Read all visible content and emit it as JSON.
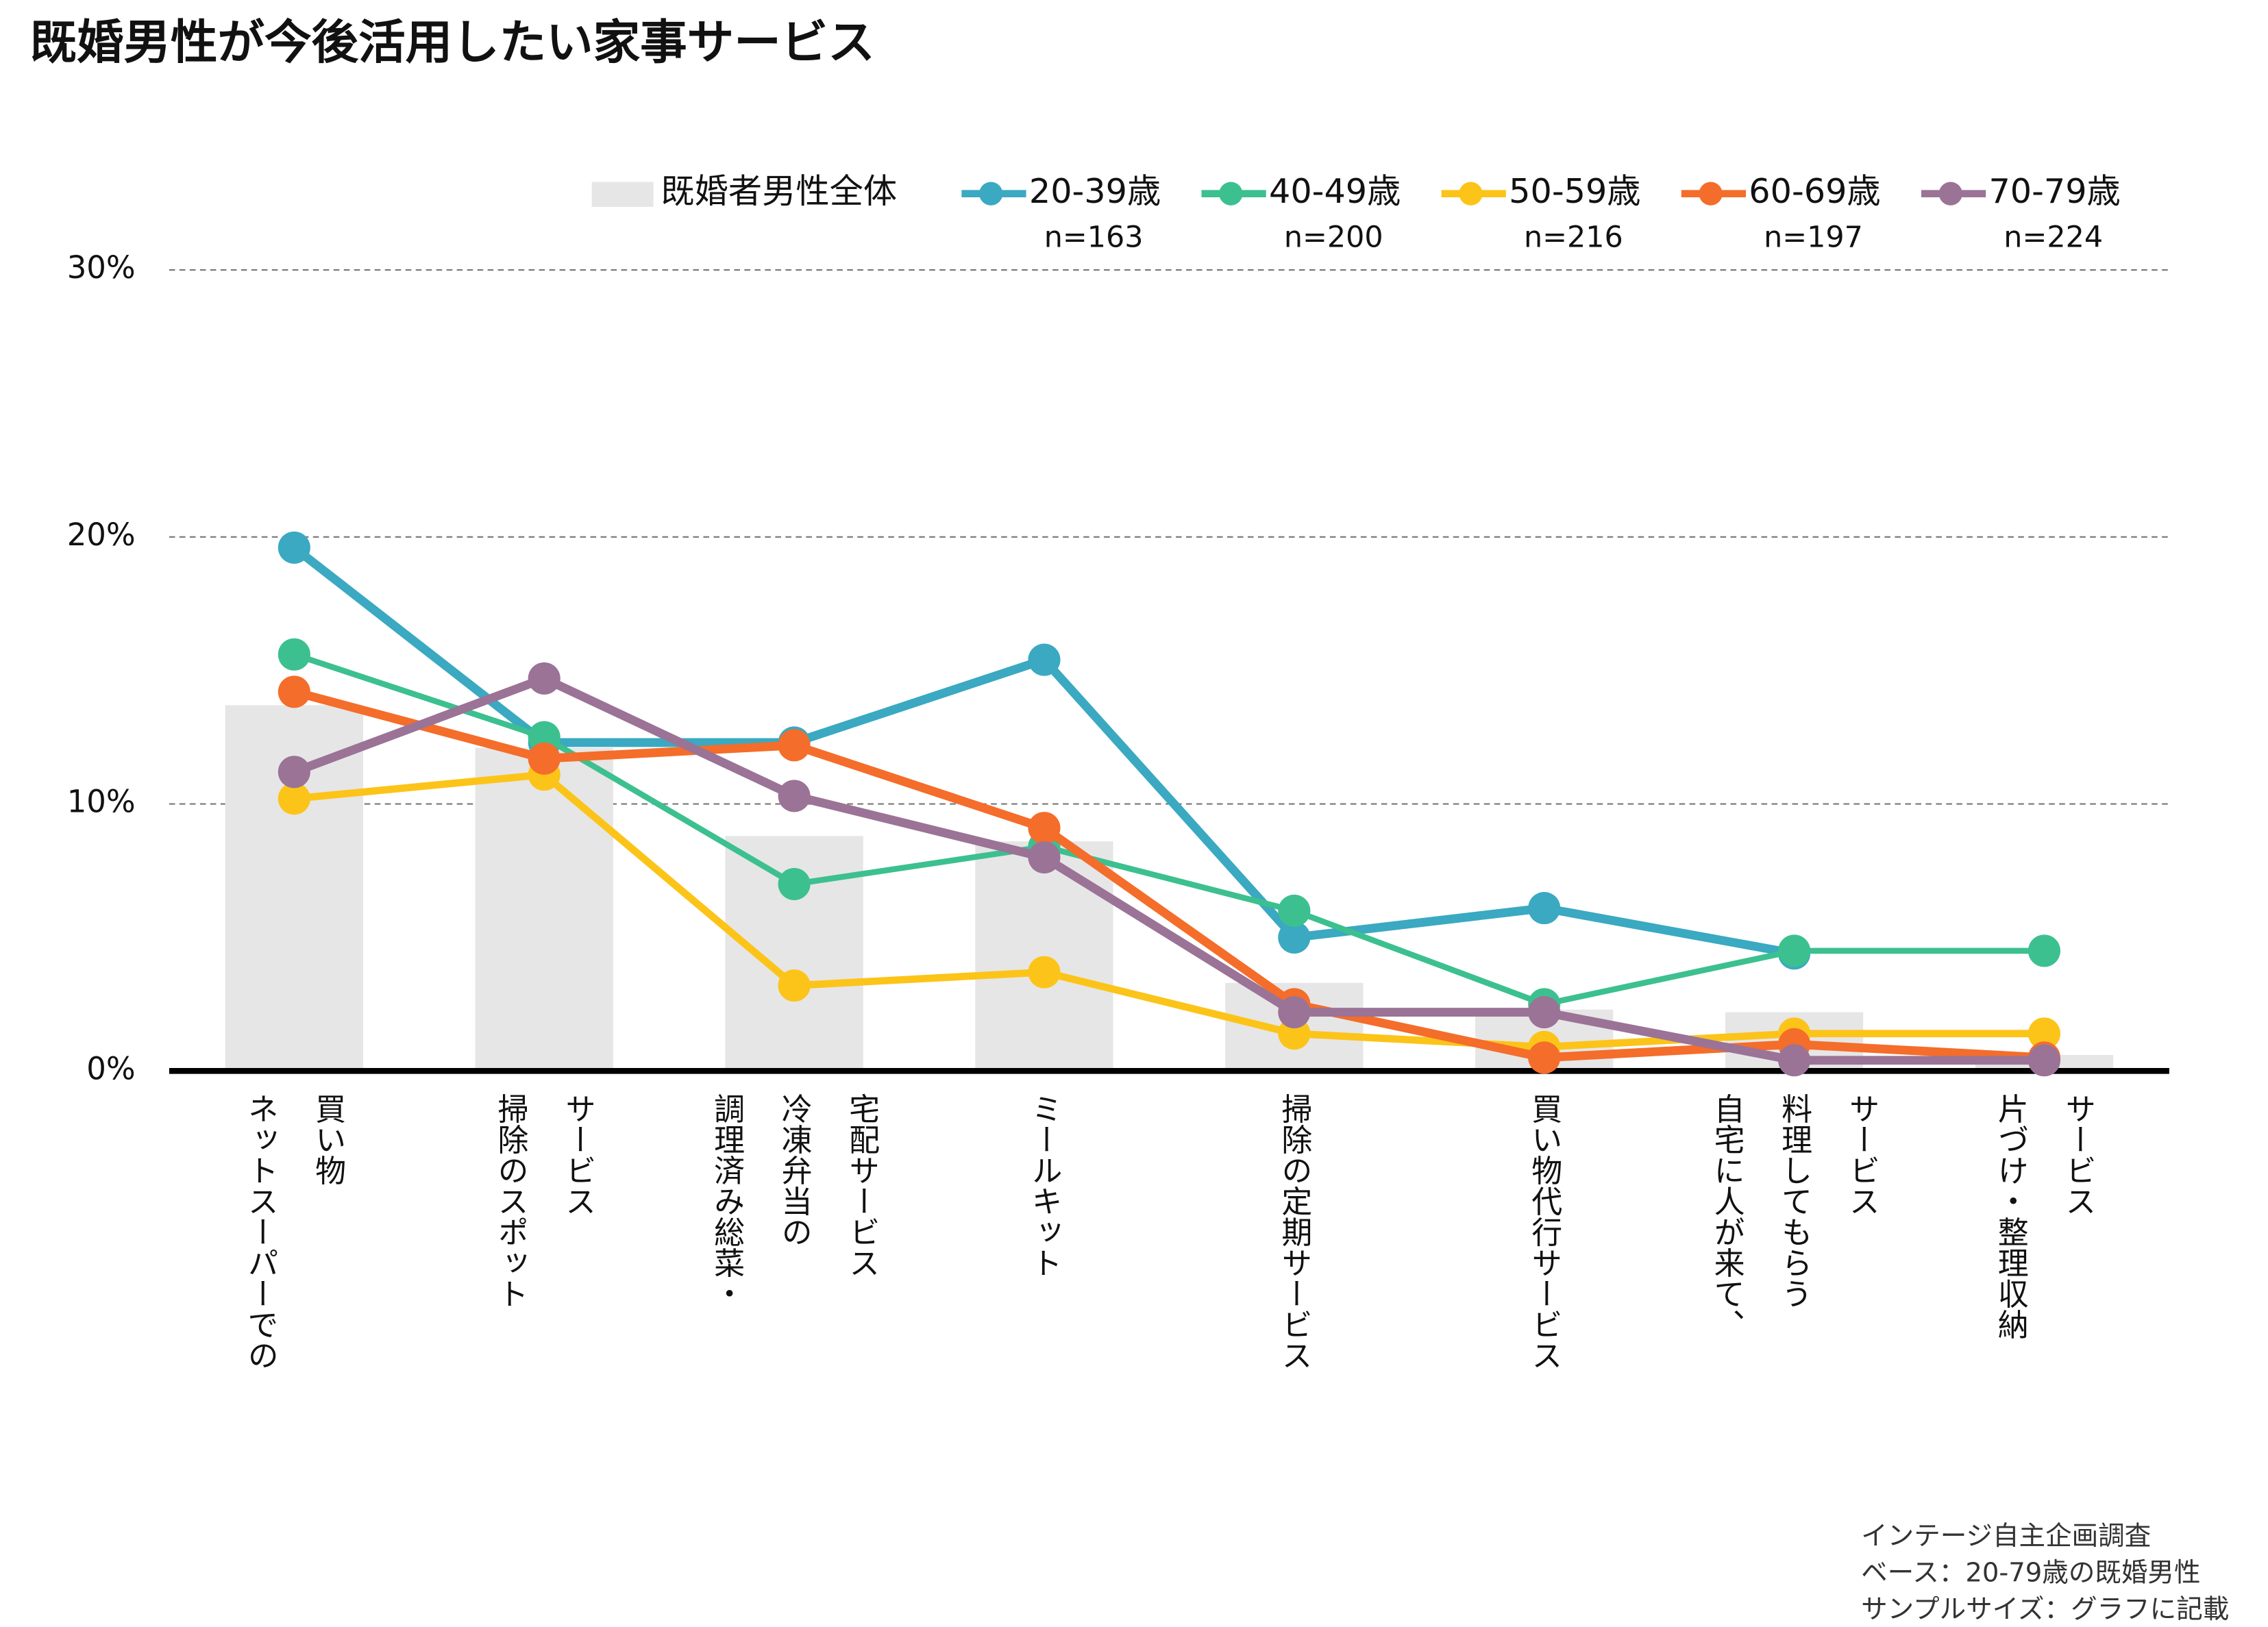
{
  "chart_data": {
    "type": "bar-line",
    "title": "既婚男性が今後活用したい家事サービス",
    "categories": [
      [
        "ネットスーパーでの",
        "買い物"
      ],
      [
        "掃除のスポット",
        "サービス"
      ],
      [
        "調理済み総菜・",
        "冷凍弁当の",
        "宅配サービス"
      ],
      [
        "ミールキット"
      ],
      [
        "掃除の定期サービス"
      ],
      [
        "買い物代行サービス"
      ],
      [
        "自宅に人が来て、",
        "料理してもらう",
        "サービス"
      ],
      [
        "片づけ・整理収納",
        "サービス"
      ]
    ],
    "bars": {
      "name": "既婚者男性全体",
      "color": "#e6e6e6",
      "values": [
        13.7,
        12.1,
        8.8,
        8.6,
        3.3,
        2.3,
        2.2,
        0.6
      ]
    },
    "series": [
      {
        "name": "20-39歳",
        "n": "n=163",
        "color": "#3aa9c1",
        "width": 6,
        "values": [
          19.6,
          12.3,
          12.3,
          15.4,
          5.0,
          6.1,
          4.4,
          null
        ]
      },
      {
        "name": "40-49歳",
        "n": "n=200",
        "color": "#3cc08f",
        "width": 4,
        "values": [
          15.6,
          12.5,
          7.0,
          8.4,
          6.0,
          2.5,
          4.5,
          4.5
        ]
      },
      {
        "name": "50-59歳",
        "n": "n=216",
        "color": "#fcc419",
        "width": 5,
        "values": [
          10.2,
          11.1,
          3.2,
          3.7,
          1.4,
          0.9,
          1.4,
          1.4
        ]
      },
      {
        "name": "60-69歳",
        "n": "n=197",
        "color": "#f46d2a",
        "width": 6,
        "values": [
          14.2,
          11.7,
          12.2,
          9.1,
          2.5,
          0.5,
          1.0,
          0.5
        ]
      },
      {
        "name": "70-79歳",
        "n": "n=224",
        "color": "#9b7396",
        "width": 6,
        "values": [
          11.2,
          14.7,
          10.3,
          8.0,
          2.2,
          2.2,
          0.4,
          0.4
        ]
      }
    ],
    "ylim": [
      0,
      30
    ],
    "yticks": [
      {
        "value": 0,
        "label": "0%"
      },
      {
        "value": 10,
        "label": "10%"
      },
      {
        "value": 20,
        "label": "20%"
      },
      {
        "value": 30,
        "label": "30%"
      }
    ],
    "grid": true,
    "notes": [
      "インテージ自主企画調査",
      "ベース：20-79歳の既婚男性",
      "サンプルサイズ：グラフに記載"
    ]
  }
}
